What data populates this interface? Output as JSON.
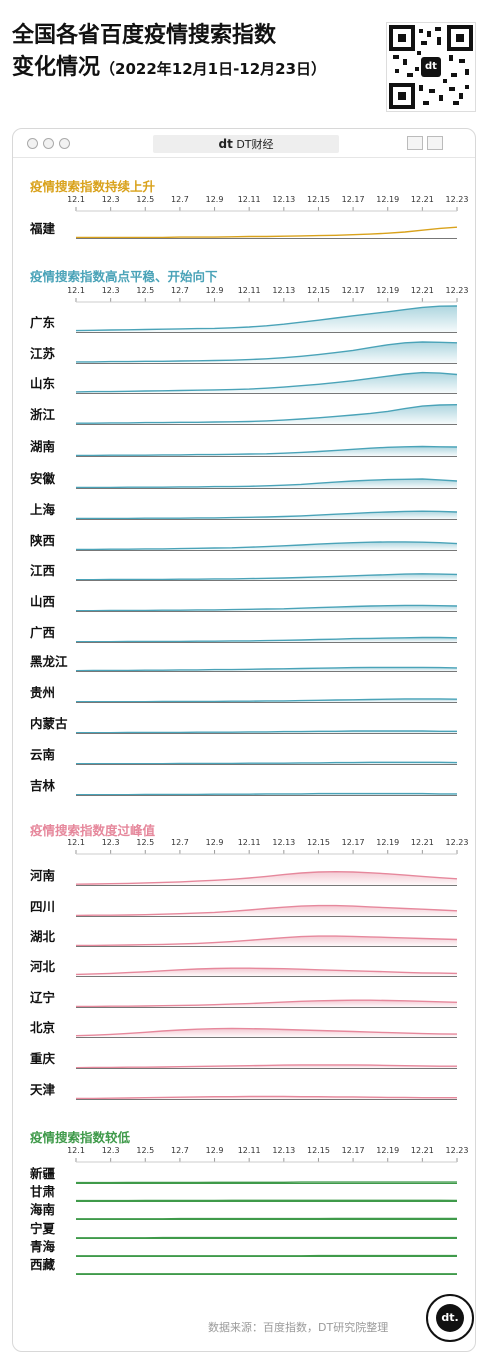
{
  "title": {
    "line1": "全国各省百度疫情搜索指数",
    "line2": "变化情况",
    "subtitle": "（2022年12月1日-12月23日）"
  },
  "window": {
    "tab_label": "DT财经",
    "tab_logo": "dt"
  },
  "qr_logo": "dt",
  "badge_logo": "dt.",
  "source": "数据来源：百度指数，DT研究院整理",
  "colors": {
    "rising": "#d9a21c",
    "plateau": "#4aa3b8",
    "past_peak": "#e6889c",
    "low": "#3f9a4a"
  },
  "chart_data": {
    "type": "area",
    "x": [
      "12.1",
      "12.2",
      "12.3",
      "12.4",
      "12.5",
      "12.6",
      "12.7",
      "12.8",
      "12.9",
      "12.10",
      "12.11",
      "12.12",
      "12.13",
      "12.14",
      "12.15",
      "12.16",
      "12.17",
      "12.18",
      "12.19",
      "12.20",
      "12.21",
      "12.22",
      "12.23"
    ],
    "tick_labels": [
      "12.1",
      "12.3",
      "12.5",
      "12.7",
      "12.9",
      "12.11",
      "12.13",
      "12.15",
      "12.17",
      "12.19",
      "12.21",
      "12.23"
    ],
    "groups": [
      {
        "title": "疫情搜索指数持续上升",
        "color_key": "rising",
        "series": [
          {
            "name": "福建",
            "values": [
              0.02,
              0.02,
              0.02,
              0.02,
              0.02,
              0.02,
              0.03,
              0.03,
              0.03,
              0.04,
              0.05,
              0.05,
              0.06,
              0.07,
              0.08,
              0.09,
              0.11,
              0.13,
              0.16,
              0.2,
              0.26,
              0.32,
              0.36
            ]
          }
        ]
      },
      {
        "title": "疫情搜索指数高点平稳、开始向下",
        "color_key": "plateau",
        "series": [
          {
            "name": "广东",
            "values": [
              0.05,
              0.06,
              0.07,
              0.08,
              0.09,
              0.1,
              0.11,
              0.12,
              0.13,
              0.15,
              0.18,
              0.22,
              0.28,
              0.35,
              0.42,
              0.5,
              0.58,
              0.65,
              0.72,
              0.8,
              0.88,
              0.92,
              0.93
            ]
          },
          {
            "name": "江苏",
            "values": [
              0.04,
              0.04,
              0.05,
              0.05,
              0.06,
              0.06,
              0.07,
              0.08,
              0.09,
              0.1,
              0.12,
              0.15,
              0.19,
              0.24,
              0.3,
              0.37,
              0.45,
              0.55,
              0.65,
              0.72,
              0.75,
              0.74,
              0.72
            ]
          },
          {
            "name": "山东",
            "values": [
              0.04,
              0.05,
              0.05,
              0.06,
              0.07,
              0.08,
              0.09,
              0.1,
              0.11,
              0.12,
              0.14,
              0.17,
              0.21,
              0.26,
              0.31,
              0.37,
              0.44,
              0.52,
              0.6,
              0.68,
              0.73,
              0.71,
              0.66
            ]
          },
          {
            "name": "浙江",
            "values": [
              0.03,
              0.03,
              0.04,
              0.04,
              0.05,
              0.05,
              0.06,
              0.06,
              0.07,
              0.08,
              0.09,
              0.11,
              0.14,
              0.18,
              0.22,
              0.27,
              0.32,
              0.38,
              0.45,
              0.55,
              0.64,
              0.68,
              0.69
            ]
          },
          {
            "name": "湖南",
            "values": [
              0.02,
              0.02,
              0.03,
              0.03,
              0.03,
              0.04,
              0.04,
              0.05,
              0.05,
              0.06,
              0.07,
              0.08,
              0.1,
              0.13,
              0.16,
              0.2,
              0.24,
              0.28,
              0.31,
              0.33,
              0.34,
              0.33,
              0.32
            ]
          },
          {
            "name": "安徽",
            "values": [
              0.02,
              0.02,
              0.02,
              0.03,
              0.03,
              0.03,
              0.04,
              0.04,
              0.05,
              0.05,
              0.06,
              0.08,
              0.1,
              0.13,
              0.17,
              0.21,
              0.25,
              0.28,
              0.3,
              0.31,
              0.32,
              0.29,
              0.25
            ]
          },
          {
            "name": "上海",
            "values": [
              0.02,
              0.02,
              0.02,
              0.02,
              0.03,
              0.03,
              0.03,
              0.04,
              0.04,
              0.05,
              0.06,
              0.07,
              0.09,
              0.11,
              0.14,
              0.17,
              0.2,
              0.23,
              0.25,
              0.27,
              0.28,
              0.27,
              0.25
            ]
          },
          {
            "name": "陕西",
            "values": [
              0.02,
              0.02,
              0.03,
              0.03,
              0.04,
              0.04,
              0.05,
              0.06,
              0.07,
              0.08,
              0.1,
              0.12,
              0.15,
              0.18,
              0.21,
              0.24,
              0.26,
              0.28,
              0.29,
              0.29,
              0.28,
              0.26,
              0.23
            ]
          },
          {
            "name": "江西",
            "values": [
              0.01,
              0.01,
              0.02,
              0.02,
              0.02,
              0.02,
              0.03,
              0.03,
              0.04,
              0.04,
              0.05,
              0.06,
              0.07,
              0.09,
              0.11,
              0.13,
              0.15,
              0.17,
              0.19,
              0.21,
              0.22,
              0.21,
              0.2
            ]
          },
          {
            "name": "山西",
            "values": [
              0.01,
              0.01,
              0.02,
              0.02,
              0.02,
              0.03,
              0.03,
              0.04,
              0.04,
              0.05,
              0.06,
              0.07,
              0.08,
              0.1,
              0.12,
              0.14,
              0.16,
              0.18,
              0.19,
              0.2,
              0.2,
              0.19,
              0.18
            ]
          },
          {
            "name": "广西",
            "values": [
              0.01,
              0.01,
              0.01,
              0.02,
              0.02,
              0.02,
              0.02,
              0.03,
              0.03,
              0.04,
              0.04,
              0.05,
              0.06,
              0.07,
              0.09,
              0.1,
              0.12,
              0.13,
              0.14,
              0.15,
              0.16,
              0.16,
              0.15
            ]
          },
          {
            "name": "黑龙江",
            "values": [
              0.01,
              0.02,
              0.02,
              0.02,
              0.03,
              0.03,
              0.04,
              0.04,
              0.05,
              0.05,
              0.06,
              0.07,
              0.08,
              0.09,
              0.1,
              0.11,
              0.12,
              0.13,
              0.13,
              0.13,
              0.13,
              0.12,
              0.11
            ]
          },
          {
            "name": "贵州",
            "values": [
              0.01,
              0.01,
              0.01,
              0.01,
              0.01,
              0.02,
              0.02,
              0.02,
              0.02,
              0.03,
              0.03,
              0.04,
              0.04,
              0.05,
              0.06,
              0.07,
              0.08,
              0.09,
              0.1,
              0.11,
              0.11,
              0.11,
              0.1
            ]
          },
          {
            "name": "内蒙古",
            "values": [
              0.01,
              0.01,
              0.01,
              0.02,
              0.02,
              0.02,
              0.02,
              0.03,
              0.03,
              0.03,
              0.04,
              0.04,
              0.05,
              0.05,
              0.06,
              0.06,
              0.07,
              0.07,
              0.07,
              0.07,
              0.07,
              0.06,
              0.06
            ]
          },
          {
            "name": "云南",
            "values": [
              0.01,
              0.01,
              0.01,
              0.01,
              0.01,
              0.01,
              0.02,
              0.02,
              0.02,
              0.02,
              0.03,
              0.03,
              0.03,
              0.04,
              0.04,
              0.05,
              0.05,
              0.06,
              0.06,
              0.06,
              0.06,
              0.06,
              0.05
            ]
          },
          {
            "name": "吉林",
            "values": [
              0.01,
              0.01,
              0.01,
              0.01,
              0.02,
              0.02,
              0.02,
              0.02,
              0.03,
              0.03,
              0.03,
              0.04,
              0.04,
              0.04,
              0.05,
              0.05,
              0.05,
              0.05,
              0.05,
              0.05,
              0.05,
              0.04,
              0.04
            ]
          }
        ]
      },
      {
        "title": "疫情搜索指数度过峰值",
        "color_key": "past_peak",
        "series": [
          {
            "name": "河南",
            "values": [
              0.03,
              0.04,
              0.05,
              0.06,
              0.08,
              0.1,
              0.12,
              0.15,
              0.18,
              0.22,
              0.27,
              0.33,
              0.4,
              0.46,
              0.5,
              0.51,
              0.5,
              0.47,
              0.43,
              0.38,
              0.33,
              0.28,
              0.24
            ]
          },
          {
            "name": "四川",
            "values": [
              0.02,
              0.03,
              0.03,
              0.04,
              0.05,
              0.07,
              0.09,
              0.11,
              0.14,
              0.18,
              0.23,
              0.29,
              0.34,
              0.38,
              0.4,
              0.4,
              0.38,
              0.35,
              0.32,
              0.29,
              0.26,
              0.23,
              0.2
            ]
          },
          {
            "name": "湖北",
            "values": [
              0.02,
              0.02,
              0.03,
              0.04,
              0.05,
              0.06,
              0.08,
              0.1,
              0.13,
              0.17,
              0.22,
              0.27,
              0.32,
              0.36,
              0.38,
              0.38,
              0.37,
              0.35,
              0.33,
              0.31,
              0.29,
              0.27,
              0.25
            ]
          },
          {
            "name": "河北",
            "values": [
              0.06,
              0.08,
              0.1,
              0.13,
              0.16,
              0.2,
              0.24,
              0.27,
              0.29,
              0.3,
              0.3,
              0.29,
              0.28,
              0.26,
              0.24,
              0.22,
              0.2,
              0.18,
              0.16,
              0.14,
              0.12,
              0.11,
              0.1
            ]
          },
          {
            "name": "辽宁",
            "values": [
              0.02,
              0.02,
              0.03,
              0.03,
              0.04,
              0.05,
              0.06,
              0.07,
              0.09,
              0.11,
              0.13,
              0.16,
              0.19,
              0.22,
              0.24,
              0.25,
              0.26,
              0.26,
              0.25,
              0.24,
              0.22,
              0.2,
              0.18
            ]
          },
          {
            "name": "北京",
            "values": [
              0.05,
              0.07,
              0.1,
              0.14,
              0.18,
              0.23,
              0.27,
              0.3,
              0.32,
              0.33,
              0.32,
              0.31,
              0.29,
              0.27,
              0.25,
              0.23,
              0.21,
              0.19,
              0.17,
              0.15,
              0.13,
              0.12,
              0.11
            ]
          },
          {
            "name": "重庆",
            "values": [
              0.01,
              0.02,
              0.02,
              0.03,
              0.03,
              0.04,
              0.05,
              0.06,
              0.07,
              0.08,
              0.09,
              0.1,
              0.11,
              0.12,
              0.12,
              0.12,
              0.12,
              0.11,
              0.1,
              0.09,
              0.08,
              0.07,
              0.07
            ]
          },
          {
            "name": "天津",
            "values": [
              0.02,
              0.02,
              0.03,
              0.04,
              0.05,
              0.06,
              0.07,
              0.08,
              0.09,
              0.09,
              0.1,
              0.1,
              0.1,
              0.09,
              0.09,
              0.08,
              0.08,
              0.07,
              0.06,
              0.06,
              0.05,
              0.05,
              0.05
            ]
          }
        ]
      },
      {
        "title": "疫情搜索指数较低",
        "color_key": "low",
        "series": [
          {
            "name": "新疆",
            "values": [
              0.02,
              0.02,
              0.02,
              0.03,
              0.03,
              0.03,
              0.03,
              0.03,
              0.04,
              0.04,
              0.04,
              0.04,
              0.04,
              0.05,
              0.05,
              0.05,
              0.05,
              0.05,
              0.05,
              0.05,
              0.05,
              0.05,
              0.05
            ]
          },
          {
            "name": "甘肃",
            "values": [
              0.02,
              0.02,
              0.02,
              0.02,
              0.03,
              0.03,
              0.03,
              0.03,
              0.03,
              0.04,
              0.04,
              0.04,
              0.04,
              0.04,
              0.04,
              0.04,
              0.04,
              0.04,
              0.04,
              0.04,
              0.04,
              0.04,
              0.03
            ]
          },
          {
            "name": "海南",
            "values": [
              0.01,
              0.01,
              0.01,
              0.01,
              0.01,
              0.01,
              0.02,
              0.02,
              0.02,
              0.02,
              0.02,
              0.02,
              0.02,
              0.02,
              0.02,
              0.03,
              0.03,
              0.03,
              0.03,
              0.03,
              0.03,
              0.03,
              0.03
            ]
          },
          {
            "name": "宁夏",
            "values": [
              0.01,
              0.01,
              0.01,
              0.01,
              0.01,
              0.02,
              0.02,
              0.02,
              0.02,
              0.02,
              0.02,
              0.02,
              0.02,
              0.02,
              0.02,
              0.02,
              0.02,
              0.02,
              0.02,
              0.02,
              0.02,
              0.02,
              0.02
            ]
          },
          {
            "name": "青海",
            "values": [
              0.01,
              0.01,
              0.01,
              0.01,
              0.01,
              0.01,
              0.01,
              0.01,
              0.01,
              0.01,
              0.01,
              0.01,
              0.01,
              0.01,
              0.02,
              0.02,
              0.02,
              0.02,
              0.02,
              0.02,
              0.02,
              0.02,
              0.02
            ]
          },
          {
            "name": "西藏",
            "values": [
              0.01,
              0.01,
              0.01,
              0.01,
              0.01,
              0.01,
              0.01,
              0.01,
              0.01,
              0.01,
              0.01,
              0.01,
              0.01,
              0.01,
              0.01,
              0.01,
              0.01,
              0.01,
              0.01,
              0.01,
              0.01,
              0.01,
              0.01
            ]
          }
        ]
      }
    ]
  }
}
